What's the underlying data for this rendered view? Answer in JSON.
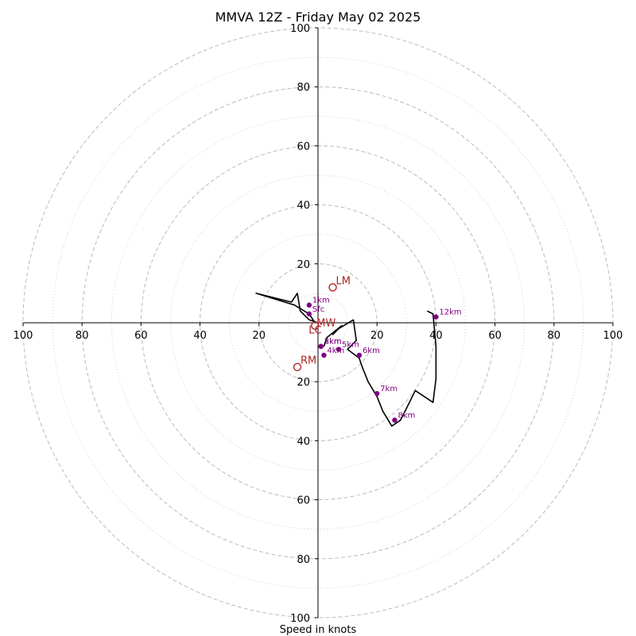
{
  "chart_data": {
    "type": "line",
    "title": "MMVA 12Z - Friday May 02 2025",
    "xlabel": "Speed in knots",
    "xlim": [
      -100,
      100
    ],
    "ylim": [
      -100,
      100
    ],
    "tick_values": [
      100,
      80,
      60,
      40,
      20
    ],
    "tick_labels": [
      "100",
      "80",
      "60",
      "40",
      "20"
    ],
    "rings_major": [
      20,
      40,
      60,
      80,
      100
    ],
    "rings_minor": [
      10,
      30,
      50,
      70,
      90
    ],
    "hodograph_trace": [
      [
        2,
        -8
      ],
      [
        3,
        -5
      ],
      [
        8,
        -1
      ],
      [
        5,
        -4
      ],
      [
        7,
        -2
      ],
      [
        12,
        1
      ],
      [
        13,
        -6
      ],
      [
        10,
        -9
      ],
      [
        14,
        -12
      ],
      [
        15,
        -15
      ],
      [
        17,
        -20
      ],
      [
        20,
        -25
      ],
      [
        22,
        -30
      ],
      [
        25,
        -35
      ],
      [
        28,
        -33
      ],
      [
        33,
        -23
      ],
      [
        39,
        -27
      ],
      [
        40,
        -19
      ],
      [
        40,
        -8
      ],
      [
        39,
        3
      ],
      [
        37,
        4
      ]
    ],
    "trace_upper_left": [
      [
        0,
        0
      ],
      [
        -3,
        1
      ],
      [
        -6,
        4
      ],
      [
        -7,
        10
      ],
      [
        -9,
        7
      ],
      [
        -21,
        10
      ],
      [
        -8,
        6
      ],
      [
        -3,
        3
      ],
      [
        -1,
        0
      ]
    ],
    "height_points": [
      {
        "label": "1km",
        "u": -3,
        "v": 6
      },
      {
        "label": "Sfc",
        "u": -3,
        "v": 3
      },
      {
        "label": "2km",
        "u": 1,
        "v": -8
      },
      {
        "label": "3km",
        "u": 1,
        "v": -8
      },
      {
        "label": "4km",
        "u": 2,
        "v": -11
      },
      {
        "label": "5km",
        "u": 7,
        "v": -9
      },
      {
        "label": "6km",
        "u": 14,
        "v": -11
      },
      {
        "label": "7km",
        "u": 20,
        "v": -24
      },
      {
        "label": "8km",
        "u": 26,
        "v": -33
      },
      {
        "label": "12km",
        "u": 40,
        "v": 2
      }
    ],
    "motion_markers": [
      {
        "label": "LM",
        "u": 5,
        "v": 12
      },
      {
        "label": "MW",
        "u": -1,
        "v": -1
      },
      {
        "label": "LC",
        "u": -1,
        "v": -1
      },
      {
        "label": "RM",
        "u": -7,
        "v": -15
      }
    ],
    "colors": {
      "trace": "#000000",
      "height_points": "#800080",
      "motion_markers": "#b22222",
      "grid": "#bbbbbb"
    }
  }
}
